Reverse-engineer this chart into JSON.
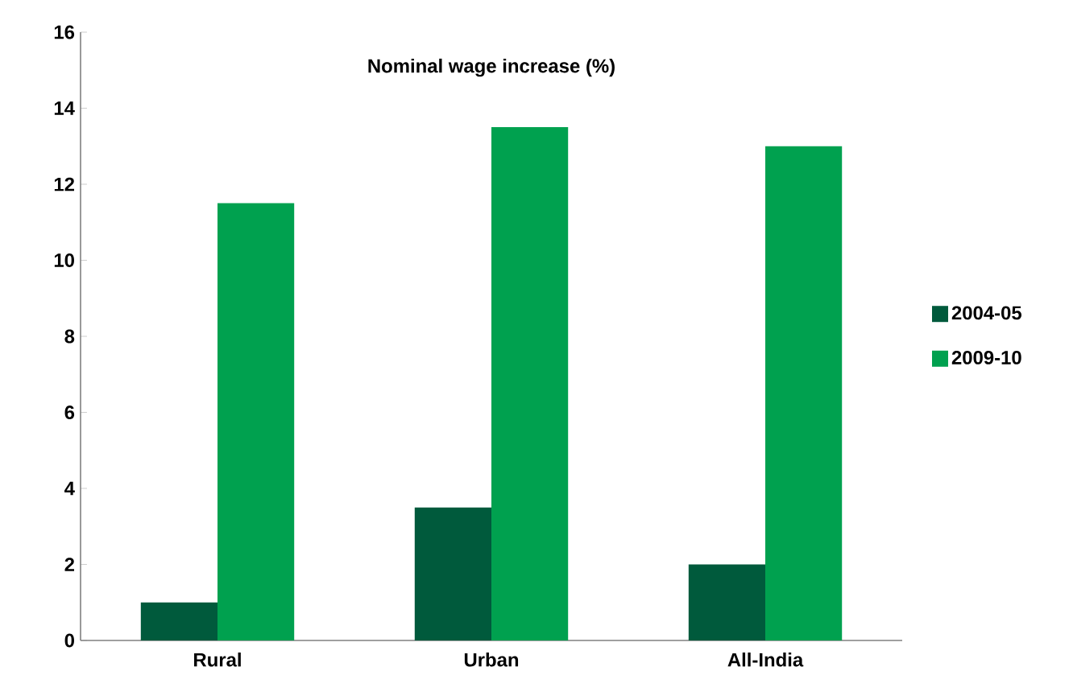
{
  "chart_data": {
    "type": "bar",
    "title": "Nominal wage increase (%)",
    "categories": [
      "Rural",
      "Urban",
      "All-India"
    ],
    "series": [
      {
        "name": "2004-05",
        "color": "#005a3c",
        "values": [
          1.0,
          3.5,
          2.0
        ]
      },
      {
        "name": "2009-10",
        "color": "#00a14f",
        "values": [
          11.5,
          13.5,
          13.0
        ]
      }
    ],
    "ylim": [
      0,
      16
    ],
    "yticks": [
      0,
      2,
      4,
      6,
      8,
      10,
      12,
      14,
      16
    ],
    "grid": false,
    "legend": "right"
  }
}
